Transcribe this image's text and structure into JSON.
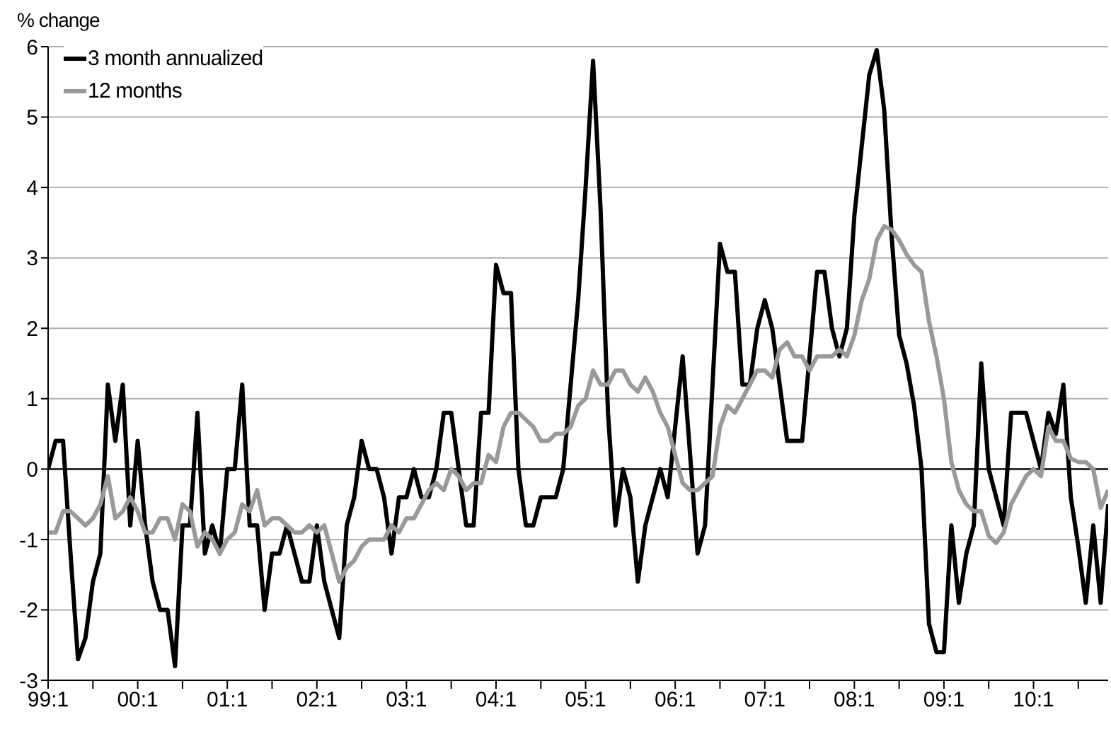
{
  "chart_data": {
    "type": "line",
    "ylabel": "% change",
    "categories": [
      "99:1",
      null,
      null,
      null,
      null,
      null,
      null,
      null,
      null,
      null,
      null,
      null,
      "00:1",
      null,
      null,
      null,
      null,
      null,
      null,
      null,
      null,
      null,
      null,
      null,
      "01:1",
      null,
      null,
      null,
      null,
      null,
      null,
      null,
      null,
      null,
      null,
      null,
      "02:1",
      null,
      null,
      null,
      null,
      null,
      null,
      null,
      null,
      null,
      null,
      null,
      "03:1",
      null,
      null,
      null,
      null,
      null,
      null,
      null,
      null,
      null,
      null,
      null,
      "04:1",
      null,
      null,
      null,
      null,
      null,
      null,
      null,
      null,
      null,
      null,
      null,
      "05:1",
      null,
      null,
      null,
      null,
      null,
      null,
      null,
      null,
      null,
      null,
      null,
      "06:1",
      null,
      null,
      null,
      null,
      null,
      null,
      null,
      null,
      null,
      null,
      null,
      "07:1",
      null,
      null,
      null,
      null,
      null,
      null,
      null,
      null,
      null,
      null,
      null,
      "08:1",
      null,
      null,
      null,
      null,
      null,
      null,
      null,
      null,
      null,
      null,
      null,
      "09:1",
      null,
      null,
      null,
      null,
      null,
      null,
      null,
      null,
      null,
      null,
      null,
      "10:1",
      null,
      null,
      null,
      null,
      null,
      null,
      null,
      null,
      null,
      null
    ],
    "series": [
      {
        "name": "3 month annualized",
        "color": "#000000",
        "values": [
          0,
          0.4,
          0.4,
          -1.2,
          -2.7,
          -2.4,
          -1.6,
          -1.2,
          1.2,
          0.4,
          1.2,
          -0.8,
          0.4,
          -0.8,
          -1.6,
          -2,
          -2,
          -2.8,
          -0.8,
          -0.8,
          0.8,
          -1.2,
          -0.8,
          -1.2,
          0,
          0,
          1.2,
          -0.8,
          -0.8,
          -2,
          -1.2,
          -1.2,
          -0.8,
          -1.2,
          -1.6,
          -1.6,
          -0.8,
          -1.6,
          -2,
          -2.4,
          -0.8,
          -0.4,
          0.4,
          0,
          0,
          -0.4,
          -1.2,
          -0.4,
          -0.4,
          0,
          -0.4,
          -0.4,
          0,
          0.8,
          0.8,
          0,
          -0.8,
          -0.8,
          0.8,
          0.8,
          2.9,
          2.5,
          2.5,
          0,
          -0.8,
          -0.8,
          -0.4,
          -0.4,
          -0.4,
          0,
          1.2,
          2.4,
          4,
          5.8,
          3.7,
          0.8,
          -0.8,
          0,
          -0.4,
          -1.6,
          -0.8,
          -0.4,
          0,
          -0.4,
          0.6,
          1.6,
          0.2,
          -1.2,
          -0.8,
          1.2,
          3.2,
          2.8,
          2.8,
          1.2,
          1.2,
          2,
          2.4,
          2,
          1.2,
          0.4,
          0.4,
          0.4,
          1.6,
          2.8,
          2.8,
          2,
          1.6,
          2,
          3.6,
          4.6,
          5.6,
          5.95,
          5.1,
          3.3,
          1.9,
          1.5,
          0.9,
          0,
          -2.2,
          -2.6,
          -2.6,
          -0.8,
          -1.9,
          -1.2,
          -0.8,
          1.5,
          0,
          -0.4,
          -0.8,
          0.8,
          0.8,
          0.8,
          0.4,
          0,
          0.8,
          0.5,
          1.2,
          -0.4,
          -1.1,
          -1.9,
          -0.8,
          -1.9,
          -0.5
        ]
      },
      {
        "name": "12 months",
        "color": "#999999",
        "values": [
          -0.9,
          -0.9,
          -0.6,
          -0.6,
          -0.7,
          -0.8,
          -0.7,
          -0.5,
          -0.1,
          -0.7,
          -0.6,
          -0.4,
          -0.6,
          -0.9,
          -0.9,
          -0.7,
          -0.7,
          -1,
          -0.5,
          -0.6,
          -1.1,
          -0.9,
          -1,
          -1.2,
          -1,
          -0.9,
          -0.5,
          -0.6,
          -0.3,
          -0.8,
          -0.7,
          -0.7,
          -0.8,
          -0.9,
          -0.9,
          -0.8,
          -0.9,
          -0.8,
          -1.2,
          -1.6,
          -1.4,
          -1.3,
          -1.1,
          -1,
          -1,
          -1,
          -0.8,
          -0.9,
          -0.7,
          -0.7,
          -0.5,
          -0.3,
          -0.2,
          -0.3,
          0,
          -0.1,
          -0.3,
          -0.2,
          -0.2,
          0.2,
          0.1,
          0.6,
          0.8,
          0.8,
          0.7,
          0.6,
          0.4,
          0.4,
          0.5,
          0.5,
          0.6,
          0.9,
          1,
          1.4,
          1.2,
          1.2,
          1.4,
          1.4,
          1.2,
          1.1,
          1.3,
          1.1,
          0.8,
          0.6,
          0.2,
          -0.2,
          -0.3,
          -0.3,
          -0.2,
          -0.1,
          0.6,
          0.9,
          0.8,
          1,
          1.2,
          1.4,
          1.4,
          1.3,
          1.7,
          1.8,
          1.6,
          1.6,
          1.4,
          1.6,
          1.6,
          1.6,
          1.7,
          1.6,
          1.9,
          2.4,
          2.7,
          3.25,
          3.45,
          3.4,
          3.25,
          3.05,
          2.9,
          2.8,
          2.1,
          1.6,
          1,
          0.1,
          -0.3,
          -0.5,
          -0.6,
          -0.6,
          -0.95,
          -1.05,
          -0.9,
          -0.5,
          -0.3,
          -0.1,
          0,
          -0.1,
          0.6,
          0.4,
          0.4,
          0.15,
          0.1,
          0.1,
          0,
          -0.55,
          -0.3
        ]
      }
    ],
    "ylim": [
      -3,
      6
    ],
    "yticks": [
      -3,
      -2,
      -1,
      0,
      1,
      2,
      3,
      4,
      5,
      6
    ],
    "ref_lines": [
      {
        "axis": "y",
        "value": 0,
        "color": "#000000"
      }
    ],
    "grid": "y",
    "legend": "top left"
  }
}
